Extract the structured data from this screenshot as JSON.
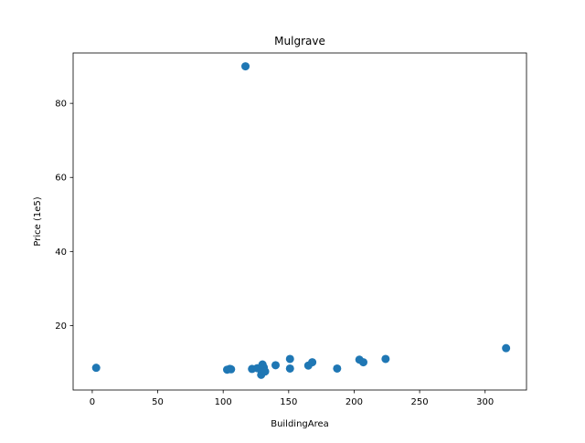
{
  "chart_data": {
    "type": "scatter",
    "title": "Mulgrave",
    "xlabel": "BuildingArea",
    "ylabel": "Price (1e5)",
    "xlim": [
      -14.6,
      331.6
    ],
    "ylim": [
      2.6,
      93.6
    ],
    "xticks": [
      0,
      50,
      100,
      150,
      200,
      250,
      300
    ],
    "yticks": [
      20,
      40,
      60,
      80
    ],
    "grid": false,
    "marker_color": "#1f77b4",
    "series": [
      {
        "points": [
          {
            "x": 3,
            "y": 8.6
          },
          {
            "x": 103,
            "y": 8.1
          },
          {
            "x": 105,
            "y": 8.3
          },
          {
            "x": 106,
            "y": 8.2
          },
          {
            "x": 117,
            "y": 90.0
          },
          {
            "x": 122,
            "y": 8.3
          },
          {
            "x": 126,
            "y": 8.5
          },
          {
            "x": 129,
            "y": 7.9
          },
          {
            "x": 129,
            "y": 6.7
          },
          {
            "x": 130,
            "y": 9.5
          },
          {
            "x": 131,
            "y": 8.7
          },
          {
            "x": 132,
            "y": 7.6
          },
          {
            "x": 140,
            "y": 9.3
          },
          {
            "x": 151,
            "y": 11.0
          },
          {
            "x": 151,
            "y": 8.4
          },
          {
            "x": 165,
            "y": 9.2
          },
          {
            "x": 168,
            "y": 10.1
          },
          {
            "x": 187,
            "y": 8.4
          },
          {
            "x": 204,
            "y": 10.8
          },
          {
            "x": 207,
            "y": 10.1
          },
          {
            "x": 224,
            "y": 11.0
          },
          {
            "x": 316,
            "y": 13.9
          }
        ]
      }
    ]
  }
}
